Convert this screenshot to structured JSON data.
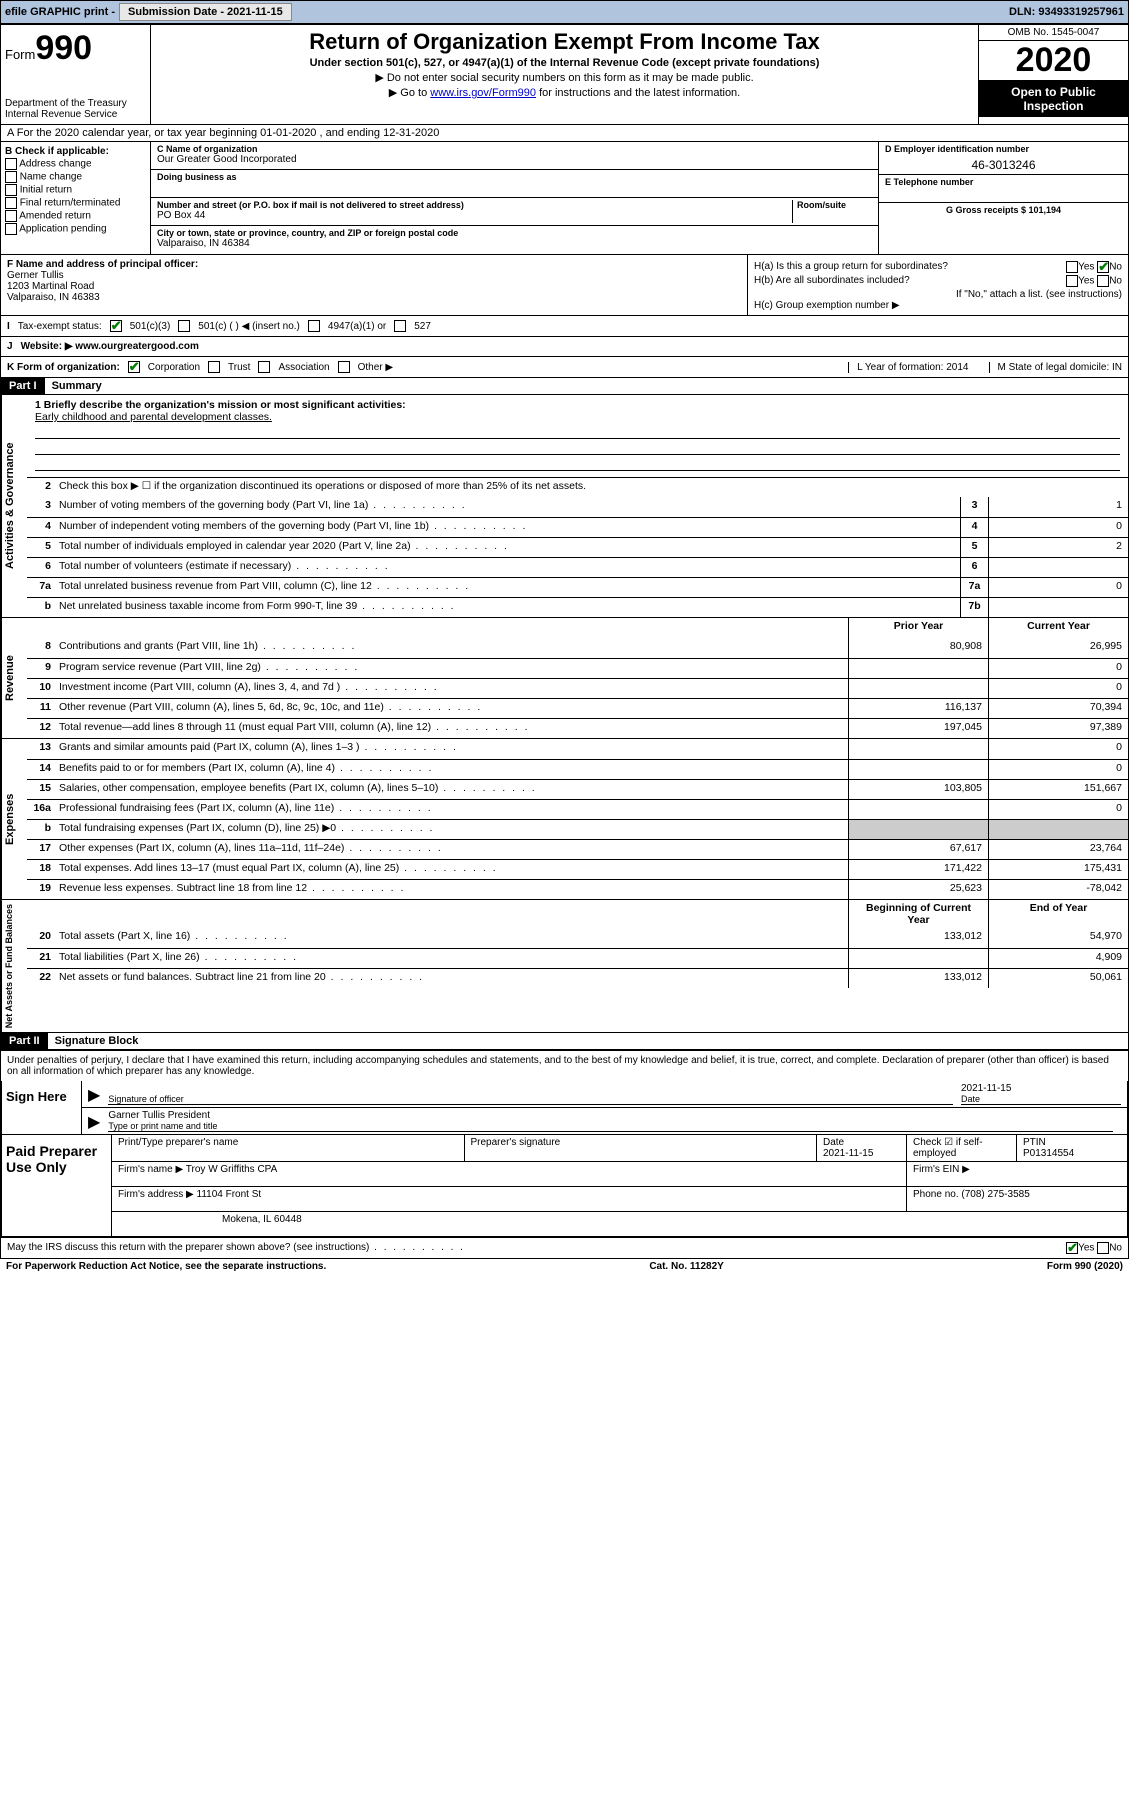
{
  "topbar": {
    "efile_label": "efile GRAPHIC print -",
    "submission_label": "Submission Date - 2021-11-15",
    "dln_label": "DLN: 93493319257961"
  },
  "header": {
    "form_word": "Form",
    "form_num": "990",
    "dept": "Department of the Treasury\nInternal Revenue Service",
    "title": "Return of Organization Exempt From Income Tax",
    "subtitle": "Under section 501(c), 527, or 4947(a)(1) of the Internal Revenue Code (except private foundations)",
    "note1": "▶ Do not enter social security numbers on this form as it may be made public.",
    "note2_pre": "▶ Go to ",
    "note2_link": "www.irs.gov/Form990",
    "note2_post": " for instructions and the latest information.",
    "omb": "OMB No. 1545-0047",
    "year": "2020",
    "inspect": "Open to Public Inspection"
  },
  "row_a": "A For the 2020 calendar year, or tax year beginning 01-01-2020   , and ending 12-31-2020",
  "box_b": {
    "title": "B Check if applicable:",
    "items": [
      "Address change",
      "Name change",
      "Initial return",
      "Final return/terminated",
      "Amended return",
      "Application pending"
    ]
  },
  "box_c": {
    "name_lbl": "C Name of organization",
    "name": "Our Greater Good Incorporated",
    "dba_lbl": "Doing business as",
    "street_lbl": "Number and street (or P.O. box if mail is not delivered to street address)",
    "room_lbl": "Room/suite",
    "street": "PO Box 44",
    "city_lbl": "City or town, state or province, country, and ZIP or foreign postal code",
    "city": "Valparaiso, IN  46384"
  },
  "box_d": {
    "ein_lbl": "D Employer identification number",
    "ein": "46-3013246",
    "phone_lbl": "E Telephone number",
    "gross_lbl": "G Gross receipts $ 101,194"
  },
  "box_f": {
    "lbl": "F  Name and address of principal officer:",
    "name": "Gerner Tullis",
    "addr1": "1203 Martinal Road",
    "addr2": "Valparaiso, IN  46383"
  },
  "box_h": {
    "ha": "H(a)  Is this a group return for subordinates?",
    "hb": "H(b)  Are all subordinates included?",
    "hb_note": "If \"No,\" attach a list. (see instructions)",
    "hc": "H(c)  Group exemption number ▶"
  },
  "row_i": {
    "lbl": "Tax-exempt status:",
    "o1": "501(c)(3)",
    "o2": "501(c) (  ) ◀ (insert no.)",
    "o3": "4947(a)(1) or",
    "o4": "527"
  },
  "row_j": {
    "lbl": "J",
    "text": "Website: ▶  www.ourgreatergood.com"
  },
  "row_k": {
    "lbl": "K Form of organization:",
    "o1": "Corporation",
    "o2": "Trust",
    "o3": "Association",
    "o4": "Other ▶",
    "l": "L Year of formation: 2014",
    "m": "M State of legal domicile: IN"
  },
  "part1": {
    "hdr": "Part I",
    "title": "Summary"
  },
  "summary": {
    "sec1_label": "Activities & Governance",
    "q1_lbl": "1  Briefly describe the organization's mission or most significant activities:",
    "q1_val": "Early childhood and parental development classes.",
    "q2": "Check this box ▶ ☐  if the organization discontinued its operations or disposed of more than 25% of its net assets.",
    "lines_g": [
      {
        "n": "3",
        "d": "Number of voting members of the governing body (Part VI, line 1a)",
        "b": "3",
        "v": "1"
      },
      {
        "n": "4",
        "d": "Number of independent voting members of the governing body (Part VI, line 1b)",
        "b": "4",
        "v": "0"
      },
      {
        "n": "5",
        "d": "Total number of individuals employed in calendar year 2020 (Part V, line 2a)",
        "b": "5",
        "v": "2"
      },
      {
        "n": "6",
        "d": "Total number of volunteers (estimate if necessary)",
        "b": "6",
        "v": ""
      },
      {
        "n": "7a",
        "d": "Total unrelated business revenue from Part VIII, column (C), line 12",
        "b": "7a",
        "v": "0"
      },
      {
        "n": "b",
        "d": "Net unrelated business taxable income from Form 990-T, line 39",
        "b": "7b",
        "v": ""
      }
    ],
    "colhdr_prior": "Prior Year",
    "colhdr_current": "Current Year",
    "sec2_label": "Revenue",
    "lines_r": [
      {
        "n": "8",
        "d": "Contributions and grants (Part VIII, line 1h)",
        "p": "80,908",
        "c": "26,995"
      },
      {
        "n": "9",
        "d": "Program service revenue (Part VIII, line 2g)",
        "p": "",
        "c": "0"
      },
      {
        "n": "10",
        "d": "Investment income (Part VIII, column (A), lines 3, 4, and 7d )",
        "p": "",
        "c": "0"
      },
      {
        "n": "11",
        "d": "Other revenue (Part VIII, column (A), lines 5, 6d, 8c, 9c, 10c, and 11e)",
        "p": "116,137",
        "c": "70,394"
      },
      {
        "n": "12",
        "d": "Total revenue—add lines 8 through 11 (must equal Part VIII, column (A), line 12)",
        "p": "197,045",
        "c": "97,389"
      }
    ],
    "sec3_label": "Expenses",
    "lines_e": [
      {
        "n": "13",
        "d": "Grants and similar amounts paid (Part IX, column (A), lines 1–3 )",
        "p": "",
        "c": "0"
      },
      {
        "n": "14",
        "d": "Benefits paid to or for members (Part IX, column (A), line 4)",
        "p": "",
        "c": "0"
      },
      {
        "n": "15",
        "d": "Salaries, other compensation, employee benefits (Part IX, column (A), lines 5–10)",
        "p": "103,805",
        "c": "151,667"
      },
      {
        "n": "16a",
        "d": "Professional fundraising fees (Part IX, column (A), line 11e)",
        "p": "",
        "c": "0"
      },
      {
        "n": "b",
        "d": "Total fundraising expenses (Part IX, column (D), line 25) ▶0",
        "p": "shade",
        "c": "shade"
      },
      {
        "n": "17",
        "d": "Other expenses (Part IX, column (A), lines 11a–11d, 11f–24e)",
        "p": "67,617",
        "c": "23,764"
      },
      {
        "n": "18",
        "d": "Total expenses. Add lines 13–17 (must equal Part IX, column (A), line 25)",
        "p": "171,422",
        "c": "175,431"
      },
      {
        "n": "19",
        "d": "Revenue less expenses. Subtract line 18 from line 12",
        "p": "25,623",
        "c": "-78,042"
      }
    ],
    "colhdr_beg": "Beginning of Current Year",
    "colhdr_end": "End of Year",
    "sec4_label": "Net Assets or Fund Balances",
    "lines_n": [
      {
        "n": "20",
        "d": "Total assets (Part X, line 16)",
        "p": "133,012",
        "c": "54,970"
      },
      {
        "n": "21",
        "d": "Total liabilities (Part X, line 26)",
        "p": "",
        "c": "4,909"
      },
      {
        "n": "22",
        "d": "Net assets or fund balances. Subtract line 21 from line 20",
        "p": "133,012",
        "c": "50,061"
      }
    ]
  },
  "part2": {
    "hdr": "Part II",
    "title": "Signature Block"
  },
  "penalties": "Under penalties of perjury, I declare that I have examined this return, including accompanying schedules and statements, and to the best of my knowledge and belief, it is true, correct, and complete. Declaration of preparer (other than officer) is based on all information of which preparer has any knowledge.",
  "sign": {
    "left": "Sign Here",
    "sig_lbl": "Signature of officer",
    "date": "2021-11-15",
    "date_lbl": "Date",
    "name": "Garner Tullis  President",
    "name_lbl": "Type or print name and title"
  },
  "prep": {
    "left": "Paid Preparer Use Only",
    "r1": {
      "c1": "Print/Type preparer's name",
      "c2": "Preparer's signature",
      "c3": "Date\n2021-11-15",
      "c4": "Check ☑ if self-employed",
      "c5": "PTIN\nP01314554"
    },
    "r2": {
      "lbl": "Firm's name    ▶",
      "val": "Troy W Griffiths CPA",
      "ein": "Firm's EIN ▶"
    },
    "r3": {
      "lbl": "Firm's address ▶",
      "val": "11104 Front St",
      "phone": "Phone no. (708) 275-3585"
    },
    "r4": {
      "val": "Mokena, IL  60448"
    }
  },
  "discuss": "May the IRS discuss this return with the preparer shown above? (see instructions)",
  "footer": {
    "left": "For Paperwork Reduction Act Notice, see the separate instructions.",
    "mid": "Cat. No. 11282Y",
    "right": "Form 990 (2020)"
  }
}
